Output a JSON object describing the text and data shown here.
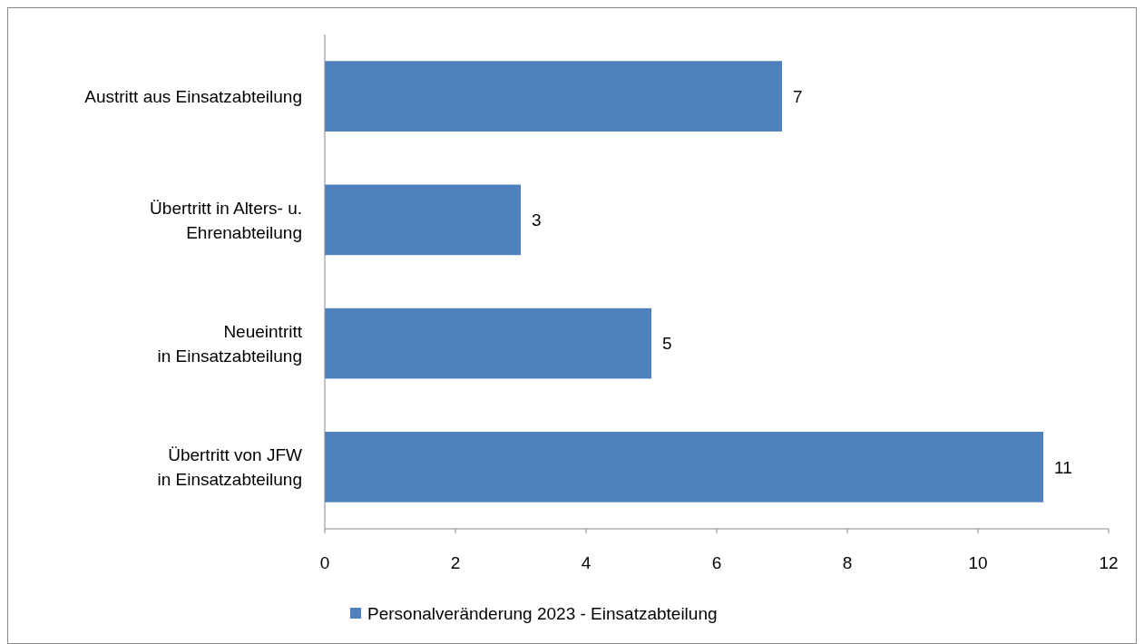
{
  "chart_data": {
    "type": "bar",
    "orientation": "horizontal",
    "categories": [
      "Austritt aus Einsatzabteilung",
      "Übertritt in Alters- u.\nEhrenabteilung",
      "Neueintritt\nin Einsatzabteilung",
      "Übertritt von JFW\nin Einsatzabteilung"
    ],
    "series": [
      {
        "name": "Personalveränderung 2023 - Einsatzabteilung",
        "color": "#4f81bd",
        "values": [
          7,
          3,
          5,
          11
        ]
      }
    ],
    "xlim": [
      0,
      12
    ],
    "xticks": [
      0,
      2,
      4,
      6,
      8,
      10,
      12
    ],
    "data_labels": true,
    "legend": "bottom",
    "grid": false
  }
}
